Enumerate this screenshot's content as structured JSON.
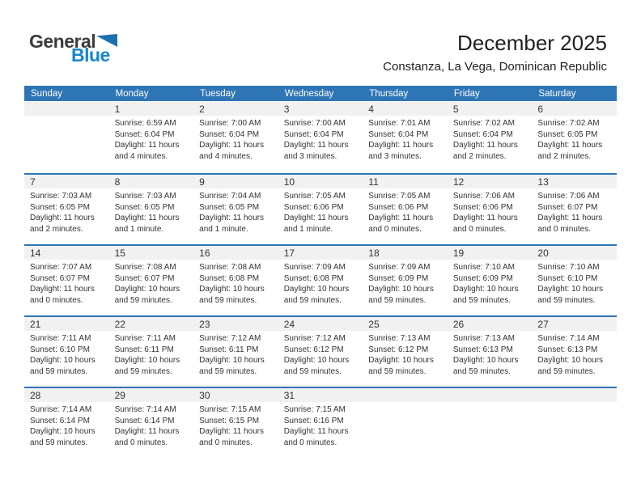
{
  "logo": {
    "general": "General",
    "blue": "Blue"
  },
  "header": {
    "title": "December 2025",
    "subtitle": "Constanza, La Vega, Dominican Republic"
  },
  "colors": {
    "header_blue": "#2E75B5",
    "band_gray": "#F1F1F1",
    "logo_blue": "#1687C9",
    "logo_triangle_blue": "#1D70AD",
    "logo_dark_text": "#3C3C3C"
  },
  "calendar": {
    "weekday_headers": [
      "Sunday",
      "Monday",
      "Tuesday",
      "Wednesday",
      "Thursday",
      "Friday",
      "Saturday"
    ],
    "weeks": [
      [
        null,
        {
          "day": "1",
          "sunrise": "Sunrise: 6:59 AM",
          "sunset": "Sunset: 6:04 PM",
          "daylight": "Daylight: 11 hours and 4 minutes."
        },
        {
          "day": "2",
          "sunrise": "Sunrise: 7:00 AM",
          "sunset": "Sunset: 6:04 PM",
          "daylight": "Daylight: 11 hours and 4 minutes."
        },
        {
          "day": "3",
          "sunrise": "Sunrise: 7:00 AM",
          "sunset": "Sunset: 6:04 PM",
          "daylight": "Daylight: 11 hours and 3 minutes."
        },
        {
          "day": "4",
          "sunrise": "Sunrise: 7:01 AM",
          "sunset": "Sunset: 6:04 PM",
          "daylight": "Daylight: 11 hours and 3 minutes."
        },
        {
          "day": "5",
          "sunrise": "Sunrise: 7:02 AM",
          "sunset": "Sunset: 6:04 PM",
          "daylight": "Daylight: 11 hours and 2 minutes."
        },
        {
          "day": "6",
          "sunrise": "Sunrise: 7:02 AM",
          "sunset": "Sunset: 6:05 PM",
          "daylight": "Daylight: 11 hours and 2 minutes."
        }
      ],
      [
        {
          "day": "7",
          "sunrise": "Sunrise: 7:03 AM",
          "sunset": "Sunset: 6:05 PM",
          "daylight": "Daylight: 11 hours and 2 minutes."
        },
        {
          "day": "8",
          "sunrise": "Sunrise: 7:03 AM",
          "sunset": "Sunset: 6:05 PM",
          "daylight": "Daylight: 11 hours and 1 minute."
        },
        {
          "day": "9",
          "sunrise": "Sunrise: 7:04 AM",
          "sunset": "Sunset: 6:05 PM",
          "daylight": "Daylight: 11 hours and 1 minute."
        },
        {
          "day": "10",
          "sunrise": "Sunrise: 7:05 AM",
          "sunset": "Sunset: 6:06 PM",
          "daylight": "Daylight: 11 hours and 1 minute."
        },
        {
          "day": "11",
          "sunrise": "Sunrise: 7:05 AM",
          "sunset": "Sunset: 6:06 PM",
          "daylight": "Daylight: 11 hours and 0 minutes."
        },
        {
          "day": "12",
          "sunrise": "Sunrise: 7:06 AM",
          "sunset": "Sunset: 6:06 PM",
          "daylight": "Daylight: 11 hours and 0 minutes."
        },
        {
          "day": "13",
          "sunrise": "Sunrise: 7:06 AM",
          "sunset": "Sunset: 6:07 PM",
          "daylight": "Daylight: 11 hours and 0 minutes."
        }
      ],
      [
        {
          "day": "14",
          "sunrise": "Sunrise: 7:07 AM",
          "sunset": "Sunset: 6:07 PM",
          "daylight": "Daylight: 11 hours and 0 minutes."
        },
        {
          "day": "15",
          "sunrise": "Sunrise: 7:08 AM",
          "sunset": "Sunset: 6:07 PM",
          "daylight": "Daylight: 10 hours and 59 minutes."
        },
        {
          "day": "16",
          "sunrise": "Sunrise: 7:08 AM",
          "sunset": "Sunset: 6:08 PM",
          "daylight": "Daylight: 10 hours and 59 minutes."
        },
        {
          "day": "17",
          "sunrise": "Sunrise: 7:09 AM",
          "sunset": "Sunset: 6:08 PM",
          "daylight": "Daylight: 10 hours and 59 minutes."
        },
        {
          "day": "18",
          "sunrise": "Sunrise: 7:09 AM",
          "sunset": "Sunset: 6:09 PM",
          "daylight": "Daylight: 10 hours and 59 minutes."
        },
        {
          "day": "19",
          "sunrise": "Sunrise: 7:10 AM",
          "sunset": "Sunset: 6:09 PM",
          "daylight": "Daylight: 10 hours and 59 minutes."
        },
        {
          "day": "20",
          "sunrise": "Sunrise: 7:10 AM",
          "sunset": "Sunset: 6:10 PM",
          "daylight": "Daylight: 10 hours and 59 minutes."
        }
      ],
      [
        {
          "day": "21",
          "sunrise": "Sunrise: 7:11 AM",
          "sunset": "Sunset: 6:10 PM",
          "daylight": "Daylight: 10 hours and 59 minutes."
        },
        {
          "day": "22",
          "sunrise": "Sunrise: 7:11 AM",
          "sunset": "Sunset: 6:11 PM",
          "daylight": "Daylight: 10 hours and 59 minutes."
        },
        {
          "day": "23",
          "sunrise": "Sunrise: 7:12 AM",
          "sunset": "Sunset: 6:11 PM",
          "daylight": "Daylight: 10 hours and 59 minutes."
        },
        {
          "day": "24",
          "sunrise": "Sunrise: 7:12 AM",
          "sunset": "Sunset: 6:12 PM",
          "daylight": "Daylight: 10 hours and 59 minutes."
        },
        {
          "day": "25",
          "sunrise": "Sunrise: 7:13 AM",
          "sunset": "Sunset: 6:12 PM",
          "daylight": "Daylight: 10 hours and 59 minutes."
        },
        {
          "day": "26",
          "sunrise": "Sunrise: 7:13 AM",
          "sunset": "Sunset: 6:13 PM",
          "daylight": "Daylight: 10 hours and 59 minutes."
        },
        {
          "day": "27",
          "sunrise": "Sunrise: 7:14 AM",
          "sunset": "Sunset: 6:13 PM",
          "daylight": "Daylight: 10 hours and 59 minutes."
        }
      ],
      [
        {
          "day": "28",
          "sunrise": "Sunrise: 7:14 AM",
          "sunset": "Sunset: 6:14 PM",
          "daylight": "Daylight: 10 hours and 59 minutes."
        },
        {
          "day": "29",
          "sunrise": "Sunrise: 7:14 AM",
          "sunset": "Sunset: 6:14 PM",
          "daylight": "Daylight: 11 hours and 0 minutes."
        },
        {
          "day": "30",
          "sunrise": "Sunrise: 7:15 AM",
          "sunset": "Sunset: 6:15 PM",
          "daylight": "Daylight: 11 hours and 0 minutes."
        },
        {
          "day": "31",
          "sunrise": "Sunrise: 7:15 AM",
          "sunset": "Sunset: 6:16 PM",
          "daylight": "Daylight: 11 hours and 0 minutes."
        },
        null,
        null,
        null
      ]
    ]
  }
}
